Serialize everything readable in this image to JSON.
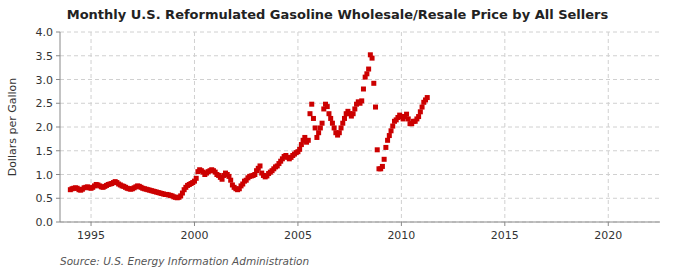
{
  "chart_data": {
    "type": "scatter",
    "title": "Monthly U.S. Reformulated Gasoline Wholesale/Resale Price by All Sellers",
    "y_label": "Dollars per Gallon",
    "annotations": [
      "Source: U.S. Energy Information Administration"
    ],
    "color": "#cc0000",
    "marker": "square",
    "grid": true,
    "xlim": [
      1993.5,
      2022.5
    ],
    "ylim": [
      0.0,
      4.0
    ],
    "xticks": [
      1995,
      2000,
      2005,
      2010,
      2015,
      2020
    ],
    "yticks": [
      {
        "value": 0.0,
        "label": "0.0"
      },
      0.5,
      {
        "value": 1.0,
        "label": "1.0"
      },
      1.5,
      {
        "value": 2.0,
        "label": "2.0"
      },
      2.5,
      {
        "value": 3.0,
        "label": "3.0"
      },
      3.5,
      {
        "value": 4.0,
        "label": "4.0"
      }
    ],
    "x": [
      1994.0,
      1994.083,
      1994.167,
      1994.25,
      1994.333,
      1994.417,
      1994.5,
      1994.583,
      1994.667,
      1994.75,
      1994.833,
      1994.917,
      1995.0,
      1995.083,
      1995.167,
      1995.25,
      1995.333,
      1995.417,
      1995.5,
      1995.583,
      1995.667,
      1995.75,
      1995.833,
      1995.917,
      1996.0,
      1996.083,
      1996.167,
      1996.25,
      1996.333,
      1996.417,
      1996.5,
      1996.583,
      1996.667,
      1996.75,
      1996.833,
      1996.917,
      1997.0,
      1997.083,
      1997.167,
      1997.25,
      1997.333,
      1997.417,
      1997.5,
      1997.583,
      1997.667,
      1997.75,
      1997.833,
      1997.917,
      1998.0,
      1998.083,
      1998.167,
      1998.25,
      1998.333,
      1998.417,
      1998.5,
      1998.583,
      1998.667,
      1998.75,
      1998.833,
      1998.917,
      1999.0,
      1999.083,
      1999.167,
      1999.25,
      1999.333,
      1999.417,
      1999.5,
      1999.583,
      1999.667,
      1999.75,
      1999.833,
      1999.917,
      2000.0,
      2000.083,
      2000.167,
      2000.25,
      2000.333,
      2000.417,
      2000.5,
      2000.583,
      2000.667,
      2000.75,
      2000.833,
      2000.917,
      2001.0,
      2001.083,
      2001.167,
      2001.25,
      2001.333,
      2001.417,
      2001.5,
      2001.583,
      2001.667,
      2001.75,
      2001.833,
      2001.917,
      2002.0,
      2002.083,
      2002.167,
      2002.25,
      2002.333,
      2002.417,
      2002.5,
      2002.583,
      2002.667,
      2002.75,
      2002.833,
      2002.917,
      2003.0,
      2003.083,
      2003.167,
      2003.25,
      2003.333,
      2003.417,
      2003.5,
      2003.583,
      2003.667,
      2003.75,
      2003.833,
      2003.917,
      2004.0,
      2004.083,
      2004.167,
      2004.25,
      2004.333,
      2004.417,
      2004.5,
      2004.583,
      2004.667,
      2004.75,
      2004.833,
      2004.917,
      2005.0,
      2005.083,
      2005.167,
      2005.25,
      2005.333,
      2005.417,
      2005.5,
      2005.583,
      2005.667,
      2005.75,
      2005.833,
      2005.917,
      2006.0,
      2006.083,
      2006.167,
      2006.25,
      2006.333,
      2006.417,
      2006.5,
      2006.583,
      2006.667,
      2006.75,
      2006.833,
      2006.917,
      2007.0,
      2007.083,
      2007.167,
      2007.25,
      2007.333,
      2007.417,
      2007.5,
      2007.583,
      2007.667,
      2007.75,
      2007.833,
      2007.917,
      2008.0,
      2008.083,
      2008.167,
      2008.25,
      2008.333,
      2008.417,
      2008.5,
      2008.583,
      2008.667,
      2008.75,
      2008.833,
      2008.917,
      2009.0,
      2009.083,
      2009.167,
      2009.25,
      2009.333,
      2009.417,
      2009.5,
      2009.583,
      2009.667,
      2009.75,
      2009.833,
      2009.917,
      2010.0,
      2010.083,
      2010.167,
      2010.25,
      2010.333,
      2010.417,
      2010.5,
      2010.583,
      2010.667,
      2010.75,
      2010.833,
      2010.917,
      2011.0,
      2011.083,
      2011.167,
      2011.25
    ],
    "values": [
      0.68,
      0.7,
      0.71,
      0.72,
      0.71,
      0.68,
      0.67,
      0.69,
      0.72,
      0.73,
      0.74,
      0.72,
      0.71,
      0.73,
      0.76,
      0.79,
      0.78,
      0.76,
      0.74,
      0.73,
      0.75,
      0.77,
      0.79,
      0.8,
      0.81,
      0.83,
      0.85,
      0.83,
      0.8,
      0.78,
      0.76,
      0.75,
      0.73,
      0.71,
      0.7,
      0.69,
      0.7,
      0.72,
      0.74,
      0.76,
      0.75,
      0.73,
      0.71,
      0.7,
      0.69,
      0.68,
      0.67,
      0.66,
      0.65,
      0.64,
      0.63,
      0.62,
      0.61,
      0.6,
      0.59,
      0.58,
      0.58,
      0.57,
      0.56,
      0.55,
      0.53,
      0.52,
      0.51,
      0.52,
      0.55,
      0.61,
      0.68,
      0.73,
      0.77,
      0.79,
      0.81,
      0.83,
      0.86,
      0.92,
      1.06,
      1.1,
      1.08,
      1.05,
      1.0,
      1.03,
      1.06,
      1.08,
      1.1,
      1.08,
      1.05,
      1.0,
      0.98,
      0.94,
      0.9,
      0.98,
      1.03,
      1.0,
      0.96,
      0.88,
      0.78,
      0.73,
      0.7,
      0.68,
      0.7,
      0.76,
      0.8,
      0.86,
      0.88,
      0.93,
      0.96,
      0.97,
      0.98,
      1.0,
      1.08,
      1.13,
      1.18,
      1.03,
      0.98,
      0.95,
      0.97,
      1.02,
      1.05,
      1.08,
      1.12,
      1.16,
      1.18,
      1.23,
      1.28,
      1.33,
      1.38,
      1.4,
      1.36,
      1.33,
      1.36,
      1.4,
      1.43,
      1.46,
      1.48,
      1.53,
      1.63,
      1.72,
      1.78,
      1.68,
      1.72,
      2.28,
      2.48,
      2.18,
      1.98,
      1.78,
      1.88,
      1.98,
      2.08,
      2.38,
      2.48,
      2.43,
      2.28,
      2.18,
      2.08,
      1.98,
      1.88,
      1.83,
      1.88,
      1.98,
      2.08,
      2.18,
      2.28,
      2.33,
      2.28,
      2.23,
      2.28,
      2.38,
      2.48,
      2.53,
      2.5,
      2.55,
      2.8,
      3.05,
      3.12,
      3.22,
      3.52,
      3.45,
      2.92,
      2.42,
      1.52,
      1.12,
      1.12,
      1.17,
      1.32,
      1.57,
      1.72,
      1.82,
      1.92,
      2.02,
      2.12,
      2.15,
      2.2,
      2.25,
      2.22,
      2.17,
      2.22,
      2.27,
      2.17,
      2.07,
      2.07,
      2.12,
      2.12,
      2.17,
      2.22,
      2.32,
      2.42,
      2.52,
      2.57,
      2.62
    ]
  }
}
